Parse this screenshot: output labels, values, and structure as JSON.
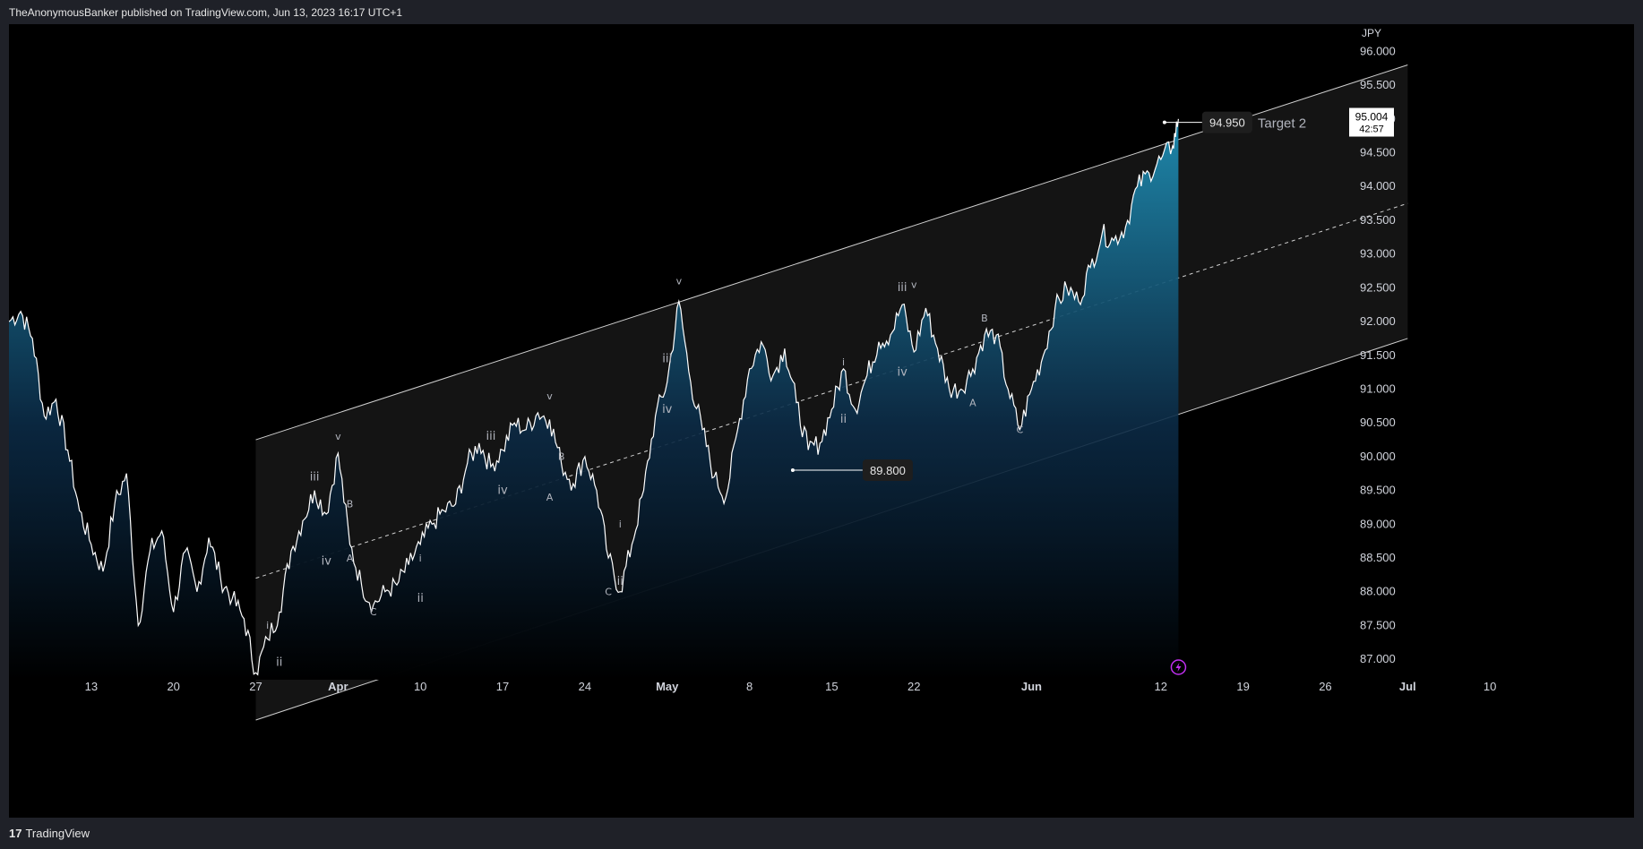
{
  "header": {
    "text": "TheAnonymousBanker published on TradingView.com, Jun 13, 2023 16:17 UTC+1"
  },
  "footer": {
    "logo_text": "TradingView",
    "logo_mark": "17"
  },
  "colors": {
    "background": "#000000",
    "frame": "#1f2128",
    "line": "#ffffff",
    "area_top": "#1f8eb3",
    "channel_fill": "#141414",
    "label_box": "#1e1e1e",
    "lightning": "#c02ff0"
  },
  "chart_data": {
    "type": "area",
    "currency_label": "JPY",
    "ylim": [
      86.75,
      96.35
    ],
    "y_ticks": [
      "96.000",
      "95.500",
      "95.000",
      "94.500",
      "94.000",
      "93.500",
      "93.000",
      "92.500",
      "92.000",
      "91.500",
      "91.000",
      "90.500",
      "90.000",
      "89.500",
      "89.000",
      "88.500",
      "88.000",
      "87.500",
      "87.000"
    ],
    "x_ticks": [
      {
        "label": "13",
        "date": "2023-03-13"
      },
      {
        "label": "20",
        "date": "2023-03-20"
      },
      {
        "label": "27",
        "date": "2023-03-27"
      },
      {
        "label": "Apr",
        "date": "2023-04-03"
      },
      {
        "label": "10",
        "date": "2023-04-10"
      },
      {
        "label": "17",
        "date": "2023-04-17"
      },
      {
        "label": "24",
        "date": "2023-04-24"
      },
      {
        "label": "May",
        "date": "2023-05-01"
      },
      {
        "label": "8",
        "date": "2023-05-08"
      },
      {
        "label": "15",
        "date": "2023-05-15"
      },
      {
        "label": "22",
        "date": "2023-05-22"
      },
      {
        "label": "Jun",
        "date": "2023-06-01"
      },
      {
        "label": "12",
        "date": "2023-06-12"
      },
      {
        "label": "19",
        "date": "2023-06-19"
      },
      {
        "label": "26",
        "date": "2023-06-26"
      },
      {
        "label": "Jul",
        "date": "2023-07-03"
      },
      {
        "label": "10",
        "date": "2023-07-10"
      }
    ],
    "last_price": "95.004",
    "countdown": "42:57",
    "series": [
      {
        "values": [
          {
            "x": "2023-03-06",
            "y": 92.0
          },
          {
            "x": "2023-03-07",
            "y": 92.15
          },
          {
            "x": "2023-03-08",
            "y": 91.75
          },
          {
            "x": "2023-03-09",
            "y": 90.6
          },
          {
            "x": "2023-03-10",
            "y": 90.85
          },
          {
            "x": "2023-03-11",
            "y": 90.1
          },
          {
            "x": "2023-03-12",
            "y": 89.2
          },
          {
            "x": "2023-03-13",
            "y": 88.7
          },
          {
            "x": "2023-03-14",
            "y": 88.3
          },
          {
            "x": "2023-03-15",
            "y": 89.3
          },
          {
            "x": "2023-03-16",
            "y": 89.75
          },
          {
            "x": "2023-03-17",
            "y": 87.5
          },
          {
            "x": "2023-03-18",
            "y": 88.6
          },
          {
            "x": "2023-03-19",
            "y": 88.9
          },
          {
            "x": "2023-03-20",
            "y": 87.7
          },
          {
            "x": "2023-03-21",
            "y": 88.6
          },
          {
            "x": "2023-03-22",
            "y": 88.0
          },
          {
            "x": "2023-03-23",
            "y": 88.8
          },
          {
            "x": "2023-03-24",
            "y": 88.2
          },
          {
            "x": "2023-03-25",
            "y": 87.9
          },
          {
            "x": "2023-03-26",
            "y": 87.6
          },
          {
            "x": "2023-03-27",
            "y": 86.8
          },
          {
            "x": "2023-03-28",
            "y": 87.3
          },
          {
            "x": "2023-03-29",
            "y": 87.7
          },
          {
            "x": "2023-03-30",
            "y": 88.6
          },
          {
            "x": "2023-03-31",
            "y": 89.05
          },
          {
            "x": "2023-04-01",
            "y": 89.5
          },
          {
            "x": "2023-04-02",
            "y": 89.15
          },
          {
            "x": "2023-04-03",
            "y": 90.05
          },
          {
            "x": "2023-04-04",
            "y": 88.7
          },
          {
            "x": "2023-04-05",
            "y": 88.1
          },
          {
            "x": "2023-04-06",
            "y": 87.8
          },
          {
            "x": "2023-04-07",
            "y": 88.0
          },
          {
            "x": "2023-04-08",
            "y": 88.1
          },
          {
            "x": "2023-04-09",
            "y": 88.4
          },
          {
            "x": "2023-04-10",
            "y": 88.7
          },
          {
            "x": "2023-04-11",
            "y": 89.0
          },
          {
            "x": "2023-04-12",
            "y": 89.2
          },
          {
            "x": "2023-04-13",
            "y": 89.3
          },
          {
            "x": "2023-04-14",
            "y": 89.9
          },
          {
            "x": "2023-04-15",
            "y": 90.2
          },
          {
            "x": "2023-04-16",
            "y": 89.85
          },
          {
            "x": "2023-04-17",
            "y": 90.1
          },
          {
            "x": "2023-04-18",
            "y": 90.5
          },
          {
            "x": "2023-04-19",
            "y": 90.4
          },
          {
            "x": "2023-04-20",
            "y": 90.65
          },
          {
            "x": "2023-04-21",
            "y": 90.55
          },
          {
            "x": "2023-04-22",
            "y": 89.9
          },
          {
            "x": "2023-04-23",
            "y": 89.6
          },
          {
            "x": "2023-04-24",
            "y": 90.0
          },
          {
            "x": "2023-04-25",
            "y": 89.5
          },
          {
            "x": "2023-04-26",
            "y": 88.5
          },
          {
            "x": "2023-04-27",
            "y": 88.0
          },
          {
            "x": "2023-04-28",
            "y": 88.7
          },
          {
            "x": "2023-04-29",
            "y": 89.5
          },
          {
            "x": "2023-04-30",
            "y": 90.6
          },
          {
            "x": "2023-05-01",
            "y": 91.1
          },
          {
            "x": "2023-05-02",
            "y": 92.3
          },
          {
            "x": "2023-05-03",
            "y": 91.1
          },
          {
            "x": "2023-05-04",
            "y": 90.4
          },
          {
            "x": "2023-05-05",
            "y": 89.7
          },
          {
            "x": "2023-05-06",
            "y": 89.4
          },
          {
            "x": "2023-05-07",
            "y": 90.4
          },
          {
            "x": "2023-05-08",
            "y": 91.3
          },
          {
            "x": "2023-05-09",
            "y": 91.7
          },
          {
            "x": "2023-05-10",
            "y": 91.2
          },
          {
            "x": "2023-05-11",
            "y": 91.6
          },
          {
            "x": "2023-05-12",
            "y": 90.8
          },
          {
            "x": "2023-05-13",
            "y": 90.1
          },
          {
            "x": "2023-05-14",
            "y": 90.2
          },
          {
            "x": "2023-05-15",
            "y": 90.7
          },
          {
            "x": "2023-05-16",
            "y": 91.3
          },
          {
            "x": "2023-05-17",
            "y": 90.7
          },
          {
            "x": "2023-05-18",
            "y": 91.2
          },
          {
            "x": "2023-05-19",
            "y": 91.7
          },
          {
            "x": "2023-05-20",
            "y": 91.8
          },
          {
            "x": "2023-05-21",
            "y": 92.25
          },
          {
            "x": "2023-05-22",
            "y": 91.55
          },
          {
            "x": "2023-05-23",
            "y": 92.2
          },
          {
            "x": "2023-05-24",
            "y": 91.6
          },
          {
            "x": "2023-05-25",
            "y": 91.0
          },
          {
            "x": "2023-05-26",
            "y": 91.0
          },
          {
            "x": "2023-05-27",
            "y": 91.3
          },
          {
            "x": "2023-05-28",
            "y": 91.8
          },
          {
            "x": "2023-05-29",
            "y": 91.8
          },
          {
            "x": "2023-05-30",
            "y": 91.0
          },
          {
            "x": "2023-05-31",
            "y": 90.4
          },
          {
            "x": "2023-06-01",
            "y": 91.0
          },
          {
            "x": "2023-06-02",
            "y": 91.5
          },
          {
            "x": "2023-06-03",
            "y": 92.2
          },
          {
            "x": "2023-06-04",
            "y": 92.5
          },
          {
            "x": "2023-06-05",
            "y": 92.3
          },
          {
            "x": "2023-06-06",
            "y": 92.8
          },
          {
            "x": "2023-06-07",
            "y": 93.3
          },
          {
            "x": "2023-06-08",
            "y": 93.2
          },
          {
            "x": "2023-06-09",
            "y": 93.4
          },
          {
            "x": "2023-06-10",
            "y": 94.0
          },
          {
            "x": "2023-06-11",
            "y": 94.2
          },
          {
            "x": "2023-06-12",
            "y": 94.4
          },
          {
            "x": "2023-06-13",
            "y": 94.6
          },
          {
            "x": "2023-06-13T12:00",
            "y": 95.0
          }
        ]
      }
    ],
    "annotations": {
      "price_labels": [
        {
          "date": "2023-06-13",
          "price": 94.95,
          "text": "94.950"
        },
        {
          "date": "2023-05-11",
          "price": 89.8,
          "text": "89.800"
        }
      ],
      "target_label": {
        "text": "Target 2",
        "price": 94.95
      },
      "wave_labels": [
        {
          "text": "i",
          "date": "2023-03-28",
          "price": 87.45
        },
        {
          "text": "ii",
          "date": "2023-03-29",
          "price": 86.9
        },
        {
          "text": "iii",
          "date": "2023-04-01",
          "price": 89.65
        },
        {
          "text": "iv",
          "date": "2023-04-02",
          "price": 88.4
        },
        {
          "text": "v",
          "date": "2023-04-03",
          "price": 90.25
        },
        {
          "text": "B",
          "date": "2023-04-04",
          "price": 89.25
        },
        {
          "text": "A",
          "date": "2023-04-04",
          "price": 88.45
        },
        {
          "text": "C",
          "date": "2023-04-06",
          "price": 87.65
        },
        {
          "text": "i",
          "date": "2023-04-10",
          "price": 88.45
        },
        {
          "text": "ii",
          "date": "2023-04-10",
          "price": 87.85
        },
        {
          "text": "iii",
          "date": "2023-04-16",
          "price": 90.25
        },
        {
          "text": "iv",
          "date": "2023-04-17",
          "price": 89.45
        },
        {
          "text": "v",
          "date": "2023-04-21",
          "price": 90.85
        },
        {
          "text": "B",
          "date": "2023-04-22",
          "price": 89.95
        },
        {
          "text": "A",
          "date": "2023-04-21",
          "price": 89.35
        },
        {
          "text": "i",
          "date": "2023-04-27",
          "price": 88.95
        },
        {
          "text": "ii",
          "date": "2023-04-27",
          "price": 88.1
        },
        {
          "text": "C",
          "date": "2023-04-26",
          "price": 87.95
        },
        {
          "text": "iii",
          "date": "2023-05-01",
          "price": 91.4
        },
        {
          "text": "iv",
          "date": "2023-05-01",
          "price": 90.65
        },
        {
          "text": "v",
          "date": "2023-05-02",
          "price": 92.55
        },
        {
          "text": "i",
          "date": "2023-05-16",
          "price": 91.35
        },
        {
          "text": "ii",
          "date": "2023-05-16",
          "price": 90.5
        },
        {
          "text": "iii",
          "date": "2023-05-21",
          "price": 92.45
        },
        {
          "text": "iv",
          "date": "2023-05-21",
          "price": 91.2
        },
        {
          "text": "v",
          "date": "2023-05-22",
          "price": 92.5
        },
        {
          "text": "B",
          "date": "2023-05-28",
          "price": 92.0
        },
        {
          "text": "A",
          "date": "2023-05-27",
          "price": 90.75
        },
        {
          "text": "C",
          "date": "2023-05-31",
          "price": 90.35
        }
      ]
    },
    "channel": {
      "start": "2023-03-27",
      "end": "2023-07-03",
      "upper": [
        90.25,
        95.8
      ],
      "middle": [
        88.2,
        93.75
      ],
      "lower": [
        86.1,
        91.75
      ]
    },
    "grid": false,
    "legend": "none"
  }
}
